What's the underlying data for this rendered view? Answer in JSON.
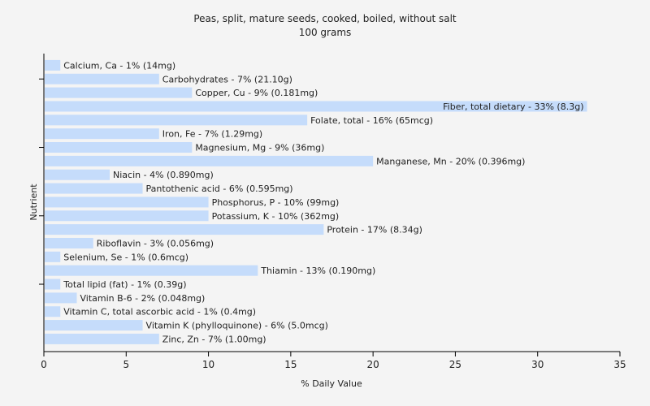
{
  "chart_data": {
    "type": "bar",
    "orientation": "horizontal",
    "title": "Peas, split, mature seeds, cooked, boiled, without salt",
    "subtitle": "100 grams",
    "xlabel": "% Daily Value",
    "ylabel": "Nutrient",
    "xlim": [
      0,
      35
    ],
    "xticks": [
      0,
      5,
      10,
      15,
      20,
      25,
      30,
      35
    ],
    "grid": false,
    "bar_color": "#c5dcfb",
    "categories": [
      "Calcium, Ca",
      "Carbohydrates",
      "Copper, Cu",
      "Fiber, total dietary",
      "Folate, total",
      "Iron, Fe",
      "Magnesium, Mg",
      "Manganese, Mn",
      "Niacin",
      "Pantothenic acid",
      "Phosphorus, P",
      "Potassium, K",
      "Protein",
      "Riboflavin",
      "Selenium, Se",
      "Thiamin",
      "Total lipid (fat)",
      "Vitamin B-6",
      "Vitamin C, total ascorbic acid",
      "Vitamin K (phylloquinone)",
      "Zinc, Zn"
    ],
    "values": [
      1,
      7,
      9,
      33,
      16,
      7,
      9,
      20,
      4,
      6,
      10,
      10,
      17,
      3,
      1,
      13,
      1,
      2,
      1,
      6,
      7
    ],
    "labels": [
      "Calcium, Ca - 1% (14mg)",
      "Carbohydrates - 7% (21.10g)",
      "Copper, Cu - 9% (0.181mg)",
      "Fiber, total dietary - 33% (8.3g)",
      "Folate, total - 16% (65mcg)",
      "Iron, Fe - 7% (1.29mg)",
      "Magnesium, Mg - 9% (36mg)",
      "Manganese, Mn - 20% (0.396mg)",
      "Niacin - 4% (0.890mg)",
      "Pantothenic acid - 6% (0.595mg)",
      "Phosphorus, P - 10% (99mg)",
      "Potassium, K - 10% (362mg)",
      "Protein - 17% (8.34g)",
      "Riboflavin - 3% (0.056mg)",
      "Selenium, Se - 1% (0.6mcg)",
      "Thiamin - 13% (0.190mg)",
      "Total lipid (fat) - 1% (0.39g)",
      "Vitamin B-6 - 2% (0.048mg)",
      "Vitamin C, total ascorbic acid - 1% (0.4mg)",
      "Vitamin K (phylloquinone) - 6% (5.0mcg)",
      "Zinc, Zn - 7% (1.00mg)"
    ]
  }
}
